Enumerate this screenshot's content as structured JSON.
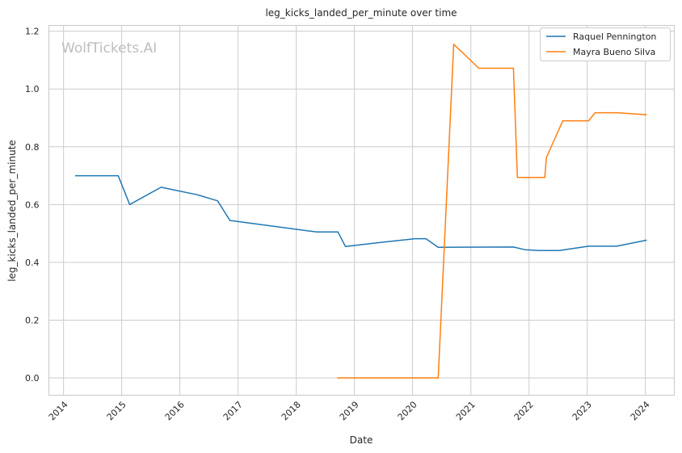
{
  "chart_data": {
    "type": "line",
    "title": "leg_kicks_landed_per_minute over time",
    "xlabel": "Date",
    "ylabel": "leg_kicks_landed_per_minute",
    "watermark": "WolfTickets.AI",
    "x_type": "date",
    "xlim": [
      "2013-10-01",
      "2024-07-01"
    ],
    "ylim": [
      -0.06,
      1.22
    ],
    "x_ticks": [
      "2014",
      "2015",
      "2016",
      "2017",
      "2018",
      "2019",
      "2020",
      "2021",
      "2022",
      "2023",
      "2024"
    ],
    "y_ticks": [
      "0.0",
      "0.2",
      "0.4",
      "0.6",
      "0.8",
      "1.0",
      "1.2"
    ],
    "grid": true,
    "legend_position": "top-right",
    "series": [
      {
        "name": "Raquel Pennington",
        "color": "#1f77b4",
        "points": [
          [
            "2014-03-15",
            0.7
          ],
          [
            "2014-12-10",
            0.7
          ],
          [
            "2015-02-20",
            0.6
          ],
          [
            "2015-09-05",
            0.66
          ],
          [
            "2016-04-20",
            0.634
          ],
          [
            "2016-08-25",
            0.613
          ],
          [
            "2016-11-10",
            0.545
          ],
          [
            "2018-05-10",
            0.505
          ],
          [
            "2018-09-20",
            0.505
          ],
          [
            "2018-11-05",
            0.455
          ],
          [
            "2019-07-01",
            0.47
          ],
          [
            "2020-01-15",
            0.482
          ],
          [
            "2020-03-25",
            0.482
          ],
          [
            "2020-06-10",
            0.452
          ],
          [
            "2021-09-25",
            0.453
          ],
          [
            "2021-12-05",
            0.444
          ],
          [
            "2022-03-05",
            0.441
          ],
          [
            "2022-07-10",
            0.441
          ],
          [
            "2023-01-10",
            0.456
          ],
          [
            "2023-07-05",
            0.456
          ],
          [
            "2024-01-10",
            0.477
          ]
        ]
      },
      {
        "name": "Mayra Bueno Silva",
        "color": "#ff7f0e",
        "points": [
          [
            "2018-09-15",
            0.0
          ],
          [
            "2020-06-10",
            0.0
          ],
          [
            "2020-09-15",
            1.155
          ],
          [
            "2021-02-20",
            1.072
          ],
          [
            "2021-09-25",
            1.072
          ],
          [
            "2021-10-20",
            0.694
          ],
          [
            "2022-04-10",
            0.694
          ],
          [
            "2022-04-20",
            0.763
          ],
          [
            "2022-08-01",
            0.89
          ],
          [
            "2023-01-10",
            0.89
          ],
          [
            "2023-02-20",
            0.918
          ],
          [
            "2023-07-10",
            0.918
          ],
          [
            "2024-01-10",
            0.911
          ]
        ]
      }
    ]
  }
}
